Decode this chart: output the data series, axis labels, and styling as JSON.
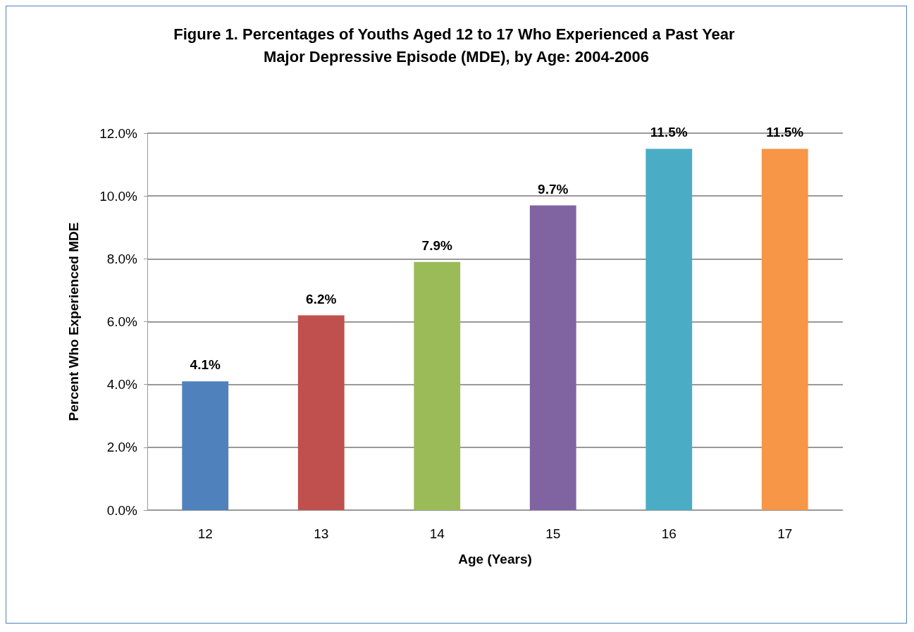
{
  "chart_data": {
    "type": "bar",
    "title": "Figure 1. Percentages of Youths Aged 12 to 17 Who Experienced a Past Year Major Depressive Episode (MDE), by Age: 2004-2006",
    "xlabel": "Age (Years)",
    "ylabel": "Percent Who Experienced MDE",
    "categories": [
      "12",
      "13",
      "14",
      "15",
      "16",
      "17"
    ],
    "values": [
      4.1,
      6.2,
      7.9,
      9.7,
      11.5,
      11.5
    ],
    "value_labels": [
      "4.1%",
      "6.2%",
      "7.9%",
      "9.7%",
      "11.5%",
      "11.5%"
    ],
    "colors": [
      "#4f81bd",
      "#c0504d",
      "#9bbb59",
      "#8064a2",
      "#4bacc6",
      "#f79646"
    ],
    "ylim": [
      0,
      12
    ],
    "yticks": [
      {
        "value": 0,
        "label": "0.0%"
      },
      {
        "value": 2,
        "label": "2.0%"
      },
      {
        "value": 4,
        "label": "4.0%"
      },
      {
        "value": 6,
        "label": "6.0%"
      },
      {
        "value": 8,
        "label": "8.0%"
      },
      {
        "value": 10,
        "label": "10.0%"
      },
      {
        "value": 12,
        "label": "12.0%"
      }
    ],
    "grid": "y"
  }
}
